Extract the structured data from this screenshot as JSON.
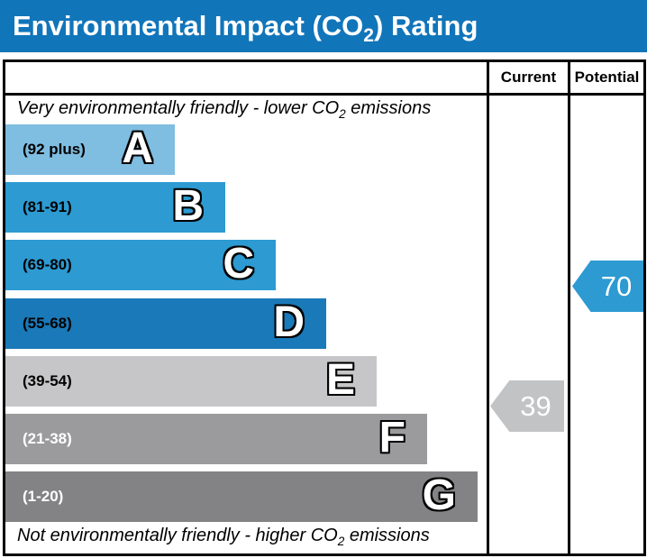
{
  "title": {
    "text_before_sub": "Environmental Impact (CO",
    "sub": "2",
    "text_after_sub": ") Rating"
  },
  "columns": {
    "current": "Current",
    "potential": "Potential"
  },
  "notes": {
    "top": {
      "text_before_sub": "Very environmentally friendly - lower CO",
      "sub": "2",
      "text_after_sub": " emissions"
    },
    "bottom": {
      "text_before_sub": "Not environmentally friendly - higher CO",
      "sub": "2",
      "text_after_sub": " emissions"
    }
  },
  "colors": {
    "title_bar": "#1175ba",
    "border": "#000000",
    "current_arrow": "#c2c3c4",
    "potential_arrow": "#2d9ad2"
  },
  "chart_data": {
    "type": "epc-rating-bands",
    "title": "Environmental Impact (CO2) Rating",
    "top_annotation": "Very environmentally friendly - lower CO2 emissions",
    "bottom_annotation": "Not environmentally friendly - higher CO2 emissions",
    "columns": [
      "Current",
      "Potential"
    ],
    "value_range": [
      1,
      100
    ],
    "bands": [
      {
        "label": "A",
        "range_text": "(92 plus)",
        "low": 92,
        "high": 100,
        "color": "#7fbde1",
        "range_label_color": "#000000"
      },
      {
        "label": "B",
        "range_text": "(81-91)",
        "low": 81,
        "high": 91,
        "color": "#2d9ad2",
        "range_label_color": "#000000"
      },
      {
        "label": "C",
        "range_text": "(69-80)",
        "low": 69,
        "high": 80,
        "color": "#2d9ad2",
        "range_label_color": "#000000"
      },
      {
        "label": "D",
        "range_text": "(55-68)",
        "low": 55,
        "high": 68,
        "color": "#1a79b8",
        "range_label_color": "#000000"
      },
      {
        "label": "E",
        "range_text": "(39-54)",
        "low": 39,
        "high": 54,
        "color": "#c6c6c8",
        "range_label_color": "#000000"
      },
      {
        "label": "F",
        "range_text": "(21-38)",
        "low": 21,
        "high": 38,
        "color": "#9b9b9d",
        "range_label_color": "#ffffff"
      },
      {
        "label": "G",
        "range_text": "(1-20)",
        "low": 1,
        "high": 20,
        "color": "#838385",
        "range_label_color": "#ffffff"
      }
    ],
    "current": {
      "value": 39,
      "band": "E",
      "color": "#c2c3c4"
    },
    "potential": {
      "value": 70,
      "band": "C",
      "color": "#2d9ad2"
    }
  }
}
